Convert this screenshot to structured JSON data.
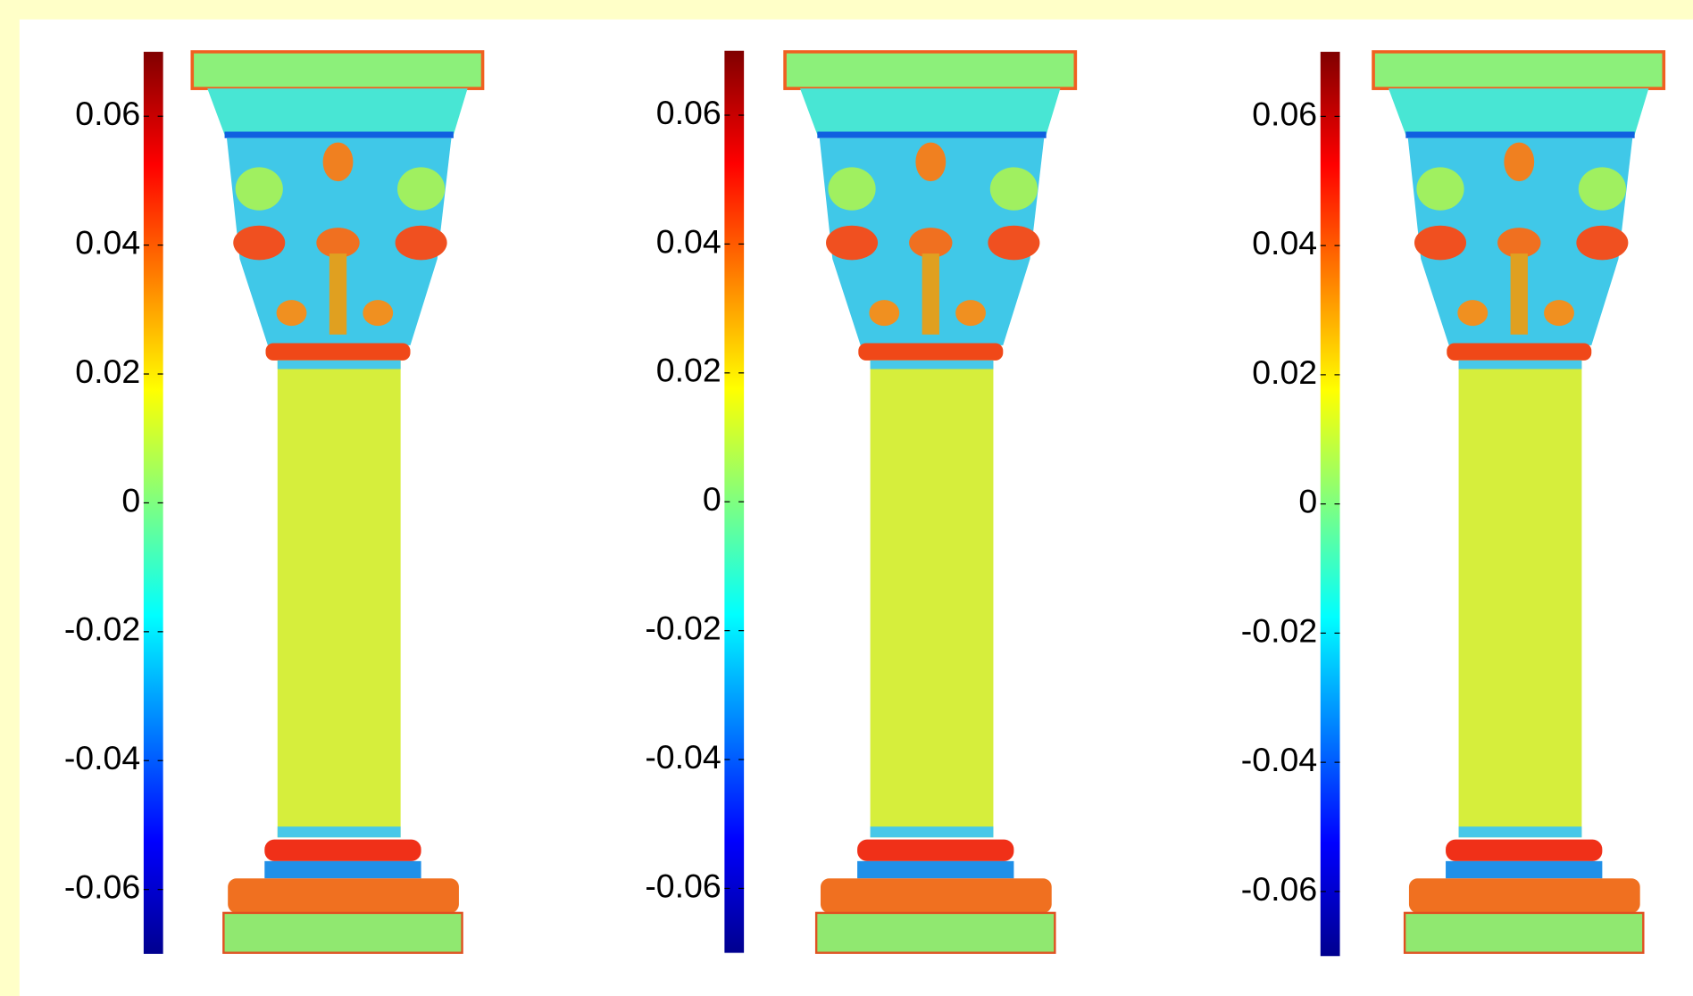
{
  "chart_data": [
    {
      "type": "colorbar",
      "colormap": "jet",
      "ylim": [
        -0.07,
        0.07
      ],
      "yticks": [
        -0.06,
        -0.04,
        -0.02,
        0,
        0.02,
        0.04,
        0.06
      ]
    },
    {
      "type": "colorbar",
      "colormap": "jet",
      "ylim": [
        -0.07,
        0.07
      ],
      "yticks": [
        -0.06,
        -0.04,
        -0.02,
        0,
        0.02,
        0.04,
        0.06
      ]
    },
    {
      "type": "colorbar",
      "colormap": "jet",
      "ylim": [
        -0.07,
        0.07
      ],
      "yticks": [
        -0.06,
        -0.04,
        -0.02,
        0,
        0.02,
        0.04,
        0.06
      ]
    }
  ]
}
